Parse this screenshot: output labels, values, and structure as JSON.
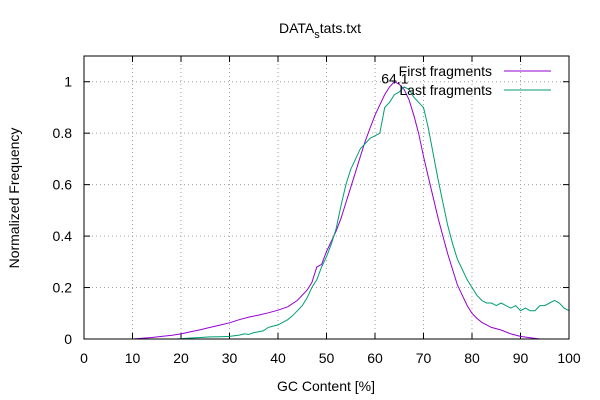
{
  "chart_data": {
    "type": "line",
    "title_main": "DATA",
    "title_sub": "s",
    "title_rest": "tats.txt",
    "xlabel": "GC Content [%]",
    "ylabel": "Normalized Frequency",
    "xlim": [
      0,
      100
    ],
    "ylim": [
      0,
      1.1
    ],
    "x_ticks": [
      0,
      10,
      20,
      30,
      40,
      50,
      60,
      70,
      80,
      90,
      100
    ],
    "y_ticks": [
      0,
      0.2,
      0.4,
      0.6,
      0.8,
      1
    ],
    "y_tick_labels": [
      "0",
      "0.2",
      "0.4",
      "0.6",
      "0.8",
      "1"
    ],
    "grid": true,
    "legend_position": "top-right",
    "annotation": {
      "text": "64.1",
      "x": 64.1,
      "y": 1.0
    },
    "series": [
      {
        "name": "First fragments",
        "color": "#9400d3",
        "points": [
          [
            10,
            0.0
          ],
          [
            12,
            0.003
          ],
          [
            14,
            0.006
          ],
          [
            16,
            0.01
          ],
          [
            18,
            0.014
          ],
          [
            20,
            0.02
          ],
          [
            22,
            0.028
          ],
          [
            24,
            0.036
          ],
          [
            26,
            0.045
          ],
          [
            28,
            0.054
          ],
          [
            30,
            0.063
          ],
          [
            32,
            0.075
          ],
          [
            34,
            0.085
          ],
          [
            36,
            0.093
          ],
          [
            38,
            0.102
          ],
          [
            40,
            0.112
          ],
          [
            42,
            0.125
          ],
          [
            44,
            0.15
          ],
          [
            46,
            0.19
          ],
          [
            47,
            0.22
          ],
          [
            48,
            0.28
          ],
          [
            49,
            0.29
          ],
          [
            50,
            0.34
          ],
          [
            51,
            0.38
          ],
          [
            52,
            0.42
          ],
          [
            53,
            0.47
          ],
          [
            54,
            0.53
          ],
          [
            55,
            0.59
          ],
          [
            56,
            0.65
          ],
          [
            57,
            0.71
          ],
          [
            58,
            0.77
          ],
          [
            59,
            0.82
          ],
          [
            60,
            0.87
          ],
          [
            61,
            0.91
          ],
          [
            62,
            0.95
          ],
          [
            63,
            0.98
          ],
          [
            64,
            1.0
          ],
          [
            65,
            0.99
          ],
          [
            66,
            0.97
          ],
          [
            67,
            0.93
          ],
          [
            68,
            0.87
          ],
          [
            69,
            0.8
          ],
          [
            70,
            0.71
          ],
          [
            71,
            0.63
          ],
          [
            72,
            0.55
          ],
          [
            73,
            0.47
          ],
          [
            74,
            0.4
          ],
          [
            75,
            0.33
          ],
          [
            76,
            0.27
          ],
          [
            77,
            0.21
          ],
          [
            78,
            0.17
          ],
          [
            79,
            0.13
          ],
          [
            80,
            0.1
          ],
          [
            81,
            0.08
          ],
          [
            82,
            0.065
          ],
          [
            84,
            0.045
          ],
          [
            86,
            0.035
          ],
          [
            88,
            0.02
          ],
          [
            90,
            0.01
          ],
          [
            92,
            0.005
          ],
          [
            94,
            0.0
          ]
        ]
      },
      {
        "name": "Last fragments",
        "color": "#009e73",
        "points": [
          [
            19,
            0.0
          ],
          [
            22,
            0.004
          ],
          [
            24,
            0.006
          ],
          [
            26,
            0.008
          ],
          [
            28,
            0.009
          ],
          [
            30,
            0.01
          ],
          [
            32,
            0.015
          ],
          [
            33,
            0.02
          ],
          [
            34,
            0.018
          ],
          [
            35,
            0.025
          ],
          [
            36,
            0.028
          ],
          [
            37,
            0.032
          ],
          [
            38,
            0.045
          ],
          [
            39,
            0.05
          ],
          [
            40,
            0.055
          ],
          [
            41,
            0.065
          ],
          [
            42,
            0.075
          ],
          [
            43,
            0.09
          ],
          [
            44,
            0.11
          ],
          [
            45,
            0.13
          ],
          [
            46,
            0.16
          ],
          [
            47,
            0.2
          ],
          [
            48,
            0.23
          ],
          [
            49,
            0.28
          ],
          [
            50,
            0.32
          ],
          [
            51,
            0.37
          ],
          [
            52,
            0.43
          ],
          [
            53,
            0.52
          ],
          [
            54,
            0.6
          ],
          [
            55,
            0.66
          ],
          [
            56,
            0.7
          ],
          [
            57,
            0.74
          ],
          [
            58,
            0.76
          ],
          [
            59,
            0.78
          ],
          [
            60,
            0.79
          ],
          [
            61,
            0.8
          ],
          [
            62,
            0.9
          ],
          [
            63,
            0.92
          ],
          [
            64,
            0.95
          ],
          [
            65,
            0.96
          ],
          [
            66,
            0.98
          ],
          [
            67,
            0.97
          ],
          [
            68,
            0.94
          ],
          [
            69,
            0.92
          ],
          [
            70,
            0.9
          ],
          [
            71,
            0.82
          ],
          [
            72,
            0.72
          ],
          [
            73,
            0.62
          ],
          [
            74,
            0.53
          ],
          [
            75,
            0.44
          ],
          [
            76,
            0.37
          ],
          [
            77,
            0.31
          ],
          [
            78,
            0.27
          ],
          [
            79,
            0.23
          ],
          [
            80,
            0.2
          ],
          [
            81,
            0.17
          ],
          [
            82,
            0.15
          ],
          [
            83,
            0.14
          ],
          [
            84,
            0.14
          ],
          [
            85,
            0.13
          ],
          [
            86,
            0.14
          ],
          [
            87,
            0.13
          ],
          [
            88,
            0.12
          ],
          [
            89,
            0.13
          ],
          [
            90,
            0.11
          ],
          [
            91,
            0.12
          ],
          [
            92,
            0.11
          ],
          [
            93,
            0.11
          ],
          [
            94,
            0.13
          ],
          [
            95,
            0.13
          ],
          [
            96,
            0.14
          ],
          [
            97,
            0.15
          ],
          [
            98,
            0.14
          ],
          [
            99,
            0.12
          ],
          [
            100,
            0.11
          ]
        ]
      }
    ]
  }
}
